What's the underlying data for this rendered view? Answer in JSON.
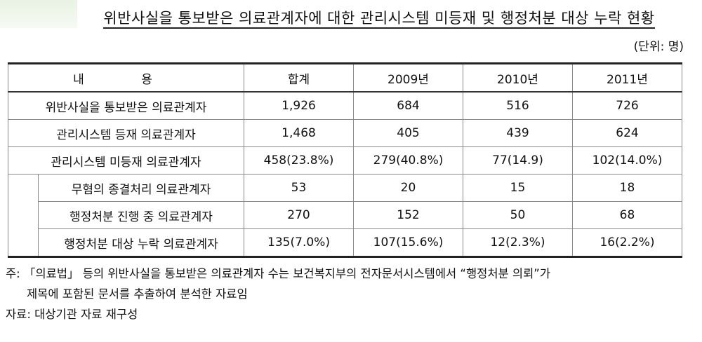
{
  "title": "위반사실을 통보받은 의료관계자에 대한 관리시스템 미등재 및 행정처분 대상 누락 현황",
  "unit": "(단위: 명)",
  "table": {
    "headers": [
      "내 용",
      "합계",
      "2009년",
      "2010년",
      "2011년"
    ],
    "rows": [
      {
        "label": "위반사실을 통보받은 의료관계자",
        "values": [
          "1,926",
          "684",
          "516",
          "726"
        ]
      },
      {
        "label": "관리시스템 등재 의료관계자",
        "values": [
          "1,468",
          "405",
          "439",
          "624"
        ]
      },
      {
        "label": "관리시스템 미등재 의료관계자",
        "values": [
          "458(23.8%)",
          "279(40.8%)",
          "77(14.9)",
          "102(14.0%)"
        ]
      },
      {
        "label": "무혐의 종결처리 의료관계자",
        "values": [
          "53",
          "20",
          "15",
          "18"
        ]
      },
      {
        "label": "행정처분 진행 중 의료관계자",
        "values": [
          "270",
          "152",
          "50",
          "68"
        ]
      },
      {
        "label": "행정처분 대상 누락 의료관계자",
        "values": [
          "135(7.0%)",
          "107(15.6%)",
          "12(2.3%)",
          "16(2.2%)"
        ]
      }
    ]
  },
  "notes": {
    "note_line1": "주: 「의료법」 등의 위반사실을 통보받은 의료관계자 수는 보건복지부의 전자문서시스템에서 “행정처분 의뢰”가",
    "note_line2": "제목에 포함된 문서를 추출하여 분석한 자료임",
    "source": "자료: 대상기관 자료 재구성"
  }
}
